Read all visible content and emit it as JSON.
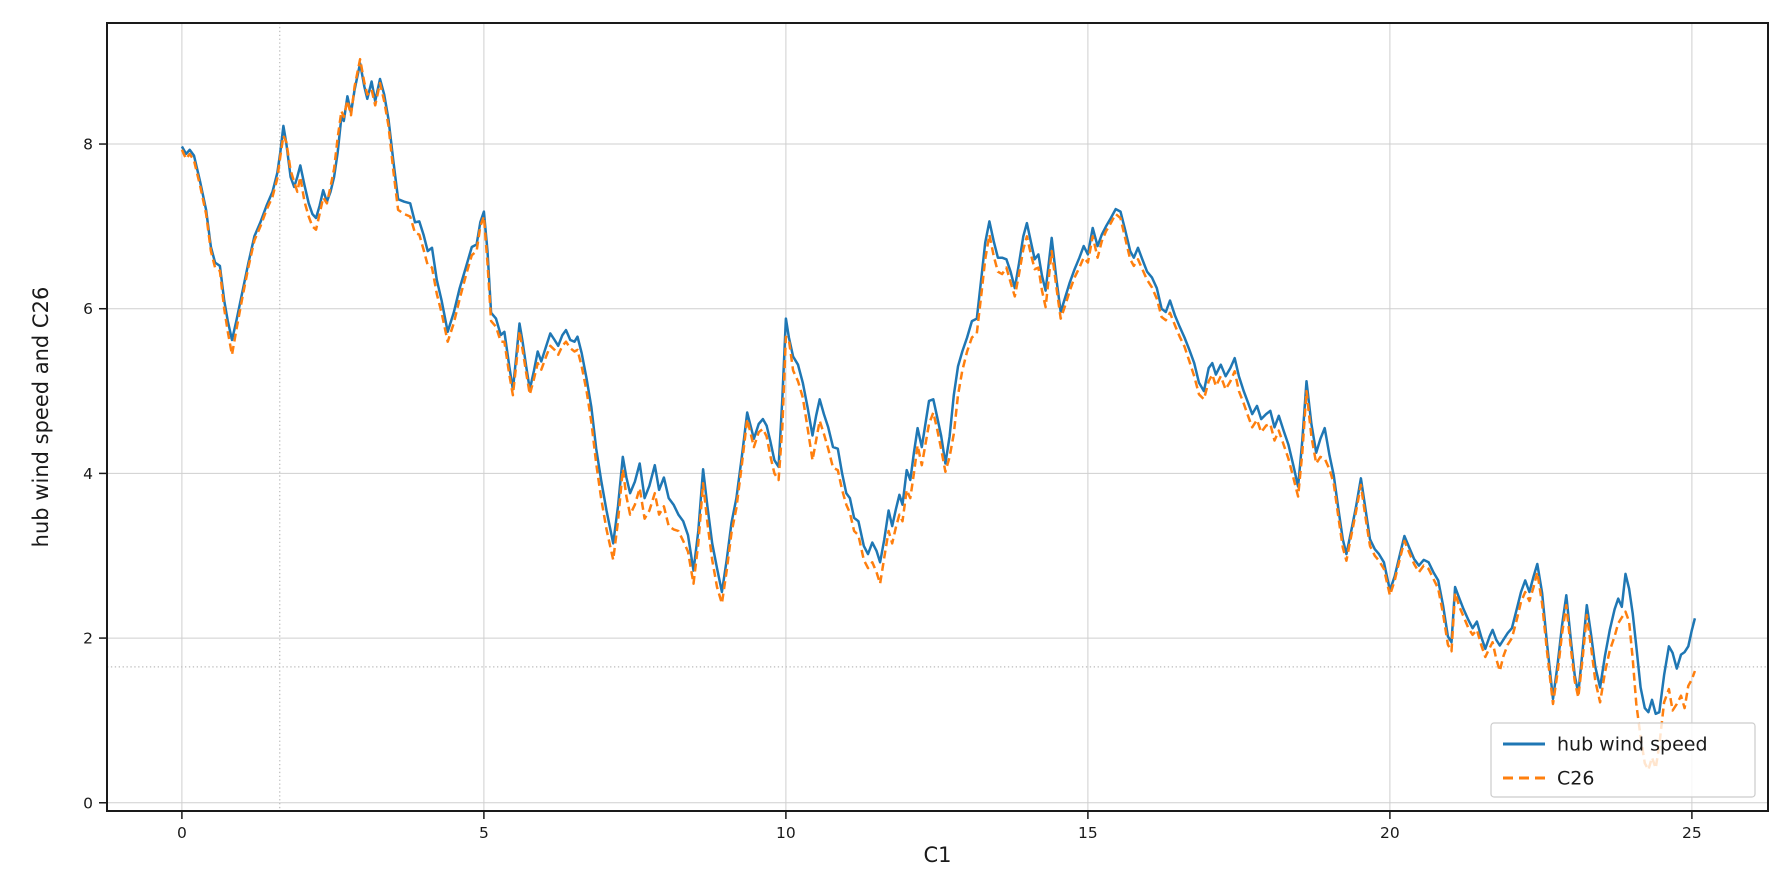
{
  "chart_data": {
    "type": "line",
    "title": "",
    "xlabel": "C1",
    "ylabel": "hub wind speed and C26",
    "xlim": [
      -1.24,
      26.26
    ],
    "ylim": [
      -0.1,
      9.47
    ],
    "xticks": [
      0,
      5,
      10,
      15,
      20,
      25
    ],
    "yticks": [
      0,
      2,
      4,
      6,
      8
    ],
    "grid": true,
    "grid_color": "#cfcfcf",
    "spine_color": "#1a1a1a",
    "reference_lines": {
      "vline_x": 1.62,
      "hline_y": 1.65,
      "style": "dotted",
      "color": "#bbbbbb"
    },
    "legend": {
      "position": "lower right",
      "background": "rgba(255,255,255,0.8)",
      "border_color": "#cccccc"
    },
    "x": [
      0.0,
      0.07,
      0.13,
      0.2,
      0.3,
      0.4,
      0.48,
      0.55,
      0.63,
      0.7,
      0.76,
      0.83,
      0.9,
      1.0,
      1.1,
      1.2,
      1.3,
      1.4,
      1.5,
      1.58,
      1.63,
      1.68,
      1.73,
      1.8,
      1.86,
      1.91,
      1.96,
      2.03,
      2.1,
      2.16,
      2.22,
      2.28,
      2.34,
      2.4,
      2.46,
      2.52,
      2.58,
      2.64,
      2.68,
      2.74,
      2.8,
      2.86,
      2.95,
      3.02,
      3.07,
      3.14,
      3.2,
      3.28,
      3.35,
      3.42,
      3.5,
      3.58,
      3.68,
      3.78,
      3.86,
      3.93,
      4.0,
      4.07,
      4.14,
      4.22,
      4.3,
      4.4,
      4.5,
      4.6,
      4.7,
      4.8,
      4.88,
      4.94,
      5.0,
      5.06,
      5.12,
      5.2,
      5.28,
      5.34,
      5.42,
      5.48,
      5.54,
      5.59,
      5.64,
      5.7,
      5.76,
      5.83,
      5.89,
      5.95,
      6.02,
      6.1,
      6.17,
      6.23,
      6.3,
      6.36,
      6.43,
      6.5,
      6.55,
      6.62,
      6.7,
      6.78,
      6.86,
      6.94,
      7.03,
      7.14,
      7.22,
      7.3,
      7.36,
      7.42,
      7.5,
      7.58,
      7.66,
      7.74,
      7.83,
      7.9,
      7.98,
      8.06,
      8.14,
      8.22,
      8.3,
      8.38,
      8.47,
      8.55,
      8.63,
      8.7,
      8.78,
      8.86,
      8.94,
      9.02,
      9.1,
      9.18,
      9.27,
      9.36,
      9.47,
      9.55,
      9.62,
      9.68,
      9.74,
      9.81,
      9.88,
      9.94,
      10.0,
      10.05,
      10.12,
      10.2,
      10.28,
      10.36,
      10.44,
      10.5,
      10.56,
      10.63,
      10.7,
      10.78,
      10.86,
      10.93,
      11.0,
      11.06,
      11.13,
      11.2,
      11.29,
      11.36,
      11.43,
      11.5,
      11.56,
      11.63,
      11.7,
      11.76,
      11.82,
      11.88,
      11.93,
      12.0,
      12.06,
      12.12,
      12.18,
      12.25,
      12.31,
      12.37,
      12.44,
      12.5,
      12.57,
      12.64,
      12.71,
      12.78,
      12.85,
      12.92,
      13.0,
      13.08,
      13.16,
      13.24,
      13.3,
      13.37,
      13.44,
      13.51,
      13.58,
      13.65,
      13.72,
      13.79,
      13.86,
      13.93,
      13.99,
      14.06,
      14.12,
      14.18,
      14.24,
      14.3,
      14.4,
      14.48,
      14.55,
      14.63,
      14.7,
      14.78,
      14.86,
      14.93,
      15.0,
      15.08,
      15.16,
      15.23,
      15.3,
      15.38,
      15.46,
      15.54,
      15.62,
      15.7,
      15.76,
      15.83,
      15.9,
      15.98,
      16.06,
      16.14,
      16.22,
      16.29,
      16.36,
      16.44,
      16.52,
      16.6,
      16.68,
      16.76,
      16.84,
      16.92,
      17.0,
      17.06,
      17.12,
      17.2,
      17.28,
      17.36,
      17.43,
      17.5,
      17.58,
      17.65,
      17.72,
      17.8,
      17.87,
      17.95,
      18.02,
      18.09,
      18.16,
      18.24,
      18.32,
      18.4,
      18.48,
      18.55,
      18.62,
      18.7,
      18.78,
      18.85,
      18.92,
      19.0,
      19.07,
      19.15,
      19.22,
      19.28,
      19.36,
      19.44,
      19.52,
      19.6,
      19.67,
      19.75,
      19.82,
      19.9,
      20.0,
      20.08,
      20.16,
      20.24,
      20.32,
      20.4,
      20.48,
      20.56,
      20.64,
      20.72,
      20.8,
      20.88,
      20.96,
      21.02,
      21.08,
      21.15,
      21.22,
      21.3,
      21.37,
      21.44,
      21.51,
      21.58,
      21.65,
      21.7,
      21.76,
      21.82,
      21.88,
      21.95,
      22.02,
      22.1,
      22.17,
      22.24,
      22.31,
      22.38,
      22.44,
      22.52,
      22.6,
      22.7,
      22.78,
      22.85,
      22.92,
      23.0,
      23.06,
      23.12,
      23.19,
      23.26,
      23.33,
      23.4,
      23.48,
      23.56,
      23.64,
      23.72,
      23.78,
      23.84,
      23.9,
      23.96,
      24.02,
      24.08,
      24.15,
      24.22,
      24.28,
      24.34,
      24.4,
      24.46,
      24.54,
      24.62,
      24.68,
      24.75,
      24.82,
      24.88,
      24.94,
      25.0,
      25.05
    ],
    "series": [
      {
        "name": "hub wind speed",
        "color": "#1f77b4",
        "style": "solid",
        "line_width": 2.5,
        "values": [
          7.97,
          7.88,
          7.93,
          7.86,
          7.55,
          7.2,
          6.75,
          6.56,
          6.52,
          6.1,
          5.85,
          5.62,
          5.85,
          6.2,
          6.55,
          6.88,
          7.05,
          7.25,
          7.42,
          7.65,
          7.9,
          8.22,
          8.0,
          7.6,
          7.48,
          7.6,
          7.74,
          7.5,
          7.28,
          7.15,
          7.1,
          7.25,
          7.44,
          7.3,
          7.42,
          7.6,
          7.9,
          8.33,
          8.28,
          8.58,
          8.38,
          8.66,
          8.98,
          8.7,
          8.55,
          8.76,
          8.52,
          8.79,
          8.6,
          8.3,
          7.8,
          7.33,
          7.3,
          7.28,
          7.05,
          7.06,
          6.9,
          6.7,
          6.74,
          6.35,
          6.1,
          5.72,
          5.95,
          6.25,
          6.5,
          6.75,
          6.78,
          7.05,
          7.18,
          6.7,
          5.95,
          5.88,
          5.68,
          5.72,
          5.3,
          5.02,
          5.45,
          5.82,
          5.6,
          5.3,
          5.02,
          5.25,
          5.48,
          5.36,
          5.52,
          5.7,
          5.62,
          5.55,
          5.68,
          5.74,
          5.62,
          5.6,
          5.66,
          5.46,
          5.15,
          4.8,
          4.3,
          3.92,
          3.55,
          3.15,
          3.6,
          4.2,
          3.95,
          3.76,
          3.9,
          4.12,
          3.7,
          3.85,
          4.1,
          3.8,
          3.95,
          3.7,
          3.62,
          3.5,
          3.42,
          3.25,
          2.82,
          3.3,
          4.05,
          3.6,
          3.15,
          2.85,
          2.56,
          2.95,
          3.4,
          3.7,
          4.2,
          4.74,
          4.42,
          4.6,
          4.66,
          4.58,
          4.4,
          4.16,
          4.08,
          4.9,
          5.88,
          5.65,
          5.42,
          5.32,
          5.1,
          4.8,
          4.46,
          4.7,
          4.9,
          4.72,
          4.56,
          4.32,
          4.3,
          4.0,
          3.76,
          3.7,
          3.46,
          3.42,
          3.12,
          3.02,
          3.16,
          3.06,
          2.92,
          3.2,
          3.55,
          3.36,
          3.56,
          3.74,
          3.62,
          4.04,
          3.92,
          4.25,
          4.55,
          4.32,
          4.6,
          4.88,
          4.9,
          4.7,
          4.46,
          4.12,
          4.45,
          4.95,
          5.3,
          5.48,
          5.65,
          5.85,
          5.88,
          6.4,
          6.8,
          7.06,
          6.82,
          6.62,
          6.62,
          6.6,
          6.45,
          6.25,
          6.55,
          6.88,
          7.04,
          6.8,
          6.6,
          6.66,
          6.4,
          6.22,
          6.86,
          6.35,
          5.96,
          6.15,
          6.32,
          6.48,
          6.62,
          6.76,
          6.66,
          6.98,
          6.76,
          6.9,
          7.0,
          7.1,
          7.21,
          7.18,
          6.95,
          6.7,
          6.62,
          6.74,
          6.6,
          6.45,
          6.38,
          6.25,
          6.0,
          5.96,
          6.1,
          5.92,
          5.78,
          5.65,
          5.5,
          5.34,
          5.1,
          5.0,
          5.28,
          5.34,
          5.2,
          5.32,
          5.18,
          5.28,
          5.4,
          5.18,
          5.0,
          4.86,
          4.72,
          4.82,
          4.66,
          4.72,
          4.76,
          4.56,
          4.7,
          4.52,
          4.35,
          4.1,
          3.84,
          4.4,
          5.12,
          4.6,
          4.25,
          4.42,
          4.55,
          4.22,
          3.98,
          3.55,
          3.2,
          3.02,
          3.3,
          3.6,
          3.94,
          3.55,
          3.2,
          3.08,
          3.02,
          2.92,
          2.58,
          2.75,
          3.0,
          3.24,
          3.1,
          2.96,
          2.88,
          2.95,
          2.92,
          2.8,
          2.7,
          2.4,
          2.02,
          1.95,
          2.62,
          2.48,
          2.35,
          2.22,
          2.12,
          2.2,
          2.02,
          1.87,
          2.02,
          2.1,
          1.98,
          1.91,
          1.98,
          2.06,
          2.12,
          2.35,
          2.56,
          2.7,
          2.56,
          2.75,
          2.9,
          2.55,
          1.95,
          1.26,
          1.7,
          2.15,
          2.52,
          1.95,
          1.55,
          1.33,
          1.85,
          2.4,
          2.05,
          1.65,
          1.4,
          1.78,
          2.1,
          2.35,
          2.48,
          2.38,
          2.78,
          2.6,
          2.3,
          1.9,
          1.4,
          1.15,
          1.1,
          1.25,
          1.08,
          1.1,
          1.55,
          1.9,
          1.82,
          1.63,
          1.8,
          1.83,
          1.9,
          2.1,
          2.24
        ]
      },
      {
        "name": "C26",
        "color": "#ff7f0e",
        "style": "dashed",
        "line_width": 2.5,
        "values": [
          7.93,
          7.82,
          7.88,
          7.8,
          7.5,
          7.15,
          6.7,
          6.5,
          6.46,
          6.0,
          5.72,
          5.44,
          5.74,
          6.13,
          6.5,
          6.83,
          7.0,
          7.2,
          7.36,
          7.58,
          7.85,
          8.1,
          8.02,
          7.68,
          7.54,
          7.42,
          7.6,
          7.3,
          7.12,
          7.0,
          6.96,
          7.15,
          7.35,
          7.28,
          7.48,
          7.7,
          8.08,
          8.4,
          8.33,
          8.53,
          8.35,
          8.7,
          9.03,
          8.75,
          8.6,
          8.66,
          8.47,
          8.74,
          8.52,
          8.22,
          7.68,
          7.2,
          7.15,
          7.12,
          6.92,
          6.9,
          6.72,
          6.53,
          6.5,
          6.18,
          5.95,
          5.6,
          5.82,
          6.12,
          6.4,
          6.65,
          6.7,
          7.0,
          7.12,
          6.55,
          5.85,
          5.78,
          5.6,
          5.6,
          5.2,
          4.95,
          5.35,
          5.73,
          5.5,
          5.22,
          4.96,
          5.15,
          5.34,
          5.26,
          5.4,
          5.55,
          5.5,
          5.44,
          5.55,
          5.6,
          5.52,
          5.48,
          5.5,
          5.3,
          5.0,
          4.62,
          4.12,
          3.7,
          3.32,
          2.95,
          3.42,
          4.05,
          3.72,
          3.5,
          3.62,
          3.82,
          3.45,
          3.55,
          3.76,
          3.5,
          3.6,
          3.36,
          3.32,
          3.3,
          3.18,
          3.05,
          2.66,
          3.15,
          3.88,
          3.4,
          2.95,
          2.62,
          2.42,
          2.82,
          3.28,
          3.58,
          4.1,
          4.66,
          4.32,
          4.5,
          4.54,
          4.45,
          4.22,
          4.0,
          3.92,
          4.55,
          5.66,
          5.62,
          5.25,
          5.12,
          4.92,
          4.55,
          4.16,
          4.4,
          4.64,
          4.48,
          4.3,
          4.07,
          4.04,
          3.8,
          3.62,
          3.52,
          3.3,
          3.25,
          2.95,
          2.85,
          2.92,
          2.8,
          2.66,
          2.98,
          3.3,
          3.15,
          3.34,
          3.5,
          3.42,
          3.8,
          3.7,
          4.0,
          4.34,
          4.1,
          4.35,
          4.6,
          4.74,
          4.55,
          4.3,
          4.02,
          4.2,
          4.48,
          4.95,
          5.25,
          5.48,
          5.65,
          5.7,
          6.2,
          6.6,
          6.9,
          6.64,
          6.45,
          6.42,
          6.5,
          6.32,
          6.15,
          6.42,
          6.72,
          6.88,
          6.65,
          6.48,
          6.5,
          6.22,
          6.02,
          6.7,
          6.25,
          5.88,
          6.05,
          6.22,
          6.38,
          6.5,
          6.62,
          6.56,
          6.88,
          6.62,
          6.82,
          6.94,
          7.04,
          7.15,
          7.1,
          6.85,
          6.6,
          6.52,
          6.6,
          6.48,
          6.35,
          6.26,
          6.12,
          5.9,
          5.86,
          5.95,
          5.8,
          5.66,
          5.54,
          5.36,
          5.18,
          4.96,
          4.9,
          5.12,
          5.2,
          5.06,
          5.18,
          5.02,
          5.12,
          5.24,
          5.0,
          4.85,
          4.7,
          4.56,
          4.65,
          4.5,
          4.58,
          4.6,
          4.4,
          4.52,
          4.35,
          4.18,
          3.95,
          3.72,
          4.25,
          5.0,
          4.45,
          4.12,
          4.2,
          4.18,
          4.05,
          3.88,
          3.45,
          3.1,
          2.94,
          3.24,
          3.54,
          3.86,
          3.45,
          3.12,
          3.0,
          2.94,
          2.84,
          2.52,
          2.7,
          2.95,
          3.18,
          3.04,
          2.9,
          2.8,
          2.88,
          2.84,
          2.72,
          2.6,
          2.3,
          1.92,
          1.84,
          2.55,
          2.38,
          2.26,
          2.12,
          2.04,
          2.1,
          1.92,
          1.77,
          1.88,
          1.95,
          1.75,
          1.6,
          1.78,
          1.92,
          2.0,
          2.22,
          2.44,
          2.56,
          2.45,
          2.62,
          2.8,
          2.42,
          1.85,
          1.2,
          1.6,
          2.05,
          2.4,
          1.85,
          1.48,
          1.28,
          1.75,
          2.28,
          1.9,
          1.48,
          1.22,
          1.58,
          1.85,
          2.02,
          2.18,
          2.25,
          2.32,
          2.2,
          1.75,
          1.2,
          0.8,
          0.48,
          0.4,
          0.55,
          0.42,
          0.7,
          1.22,
          1.38,
          1.12,
          1.2,
          1.3,
          1.15,
          1.42,
          1.5,
          1.6
        ]
      }
    ]
  }
}
